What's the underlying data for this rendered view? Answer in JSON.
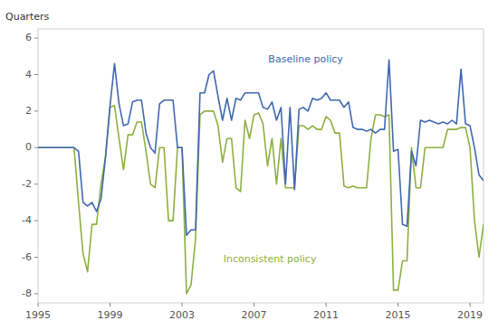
{
  "chart_data": {
    "type": "line",
    "ylabel": "Quarters",
    "xlim": [
      1995,
      2019.75
    ],
    "ylim": [
      -8.5,
      6.5
    ],
    "xticks": [
      1995,
      1999,
      2003,
      2007,
      2011,
      2015,
      2019
    ],
    "yticks": [
      -8,
      -6,
      -4,
      -2,
      0,
      2,
      4,
      6
    ],
    "grid": false,
    "x": [
      1995.0,
      1995.25,
      1995.5,
      1995.75,
      1996.0,
      1996.25,
      1996.5,
      1996.75,
      1997.0,
      1997.25,
      1997.5,
      1997.75,
      1998.0,
      1998.25,
      1998.5,
      1998.75,
      1999.0,
      1999.25,
      1999.5,
      1999.75,
      2000.0,
      2000.25,
      2000.5,
      2000.75,
      2001.0,
      2001.25,
      2001.5,
      2001.75,
      2002.0,
      2002.25,
      2002.5,
      2002.75,
      2003.0,
      2003.25,
      2003.5,
      2003.75,
      2004.0,
      2004.25,
      2004.5,
      2004.75,
      2005.0,
      2005.25,
      2005.5,
      2005.75,
      2006.0,
      2006.25,
      2006.5,
      2006.75,
      2007.0,
      2007.25,
      2007.5,
      2007.75,
      2008.0,
      2008.25,
      2008.5,
      2008.75,
      2009.0,
      2009.25,
      2009.5,
      2009.75,
      2010.0,
      2010.25,
      2010.5,
      2010.75,
      2011.0,
      2011.25,
      2011.5,
      2011.75,
      2012.0,
      2012.25,
      2012.5,
      2012.75,
      2013.0,
      2013.25,
      2013.5,
      2013.75,
      2014.0,
      2014.25,
      2014.5,
      2014.75,
      2015.0,
      2015.25,
      2015.5,
      2015.75,
      2016.0,
      2016.25,
      2016.5,
      2016.75,
      2017.0,
      2017.25,
      2017.5,
      2017.75,
      2018.0,
      2018.25,
      2018.5,
      2018.75,
      2019.0,
      2019.25,
      2019.5,
      2019.75
    ],
    "series": [
      {
        "name": "Baseline policy",
        "color": "#4068B0",
        "values": [
          0.0,
          0.0,
          0.0,
          0.0,
          0.0,
          0.0,
          0.0,
          0.0,
          0.0,
          -0.2,
          -3.0,
          -3.2,
          -3.0,
          -3.5,
          -2.8,
          -0.5,
          2.3,
          4.6,
          2.4,
          1.2,
          1.3,
          2.5,
          2.6,
          2.6,
          0.8,
          0.0,
          -0.3,
          2.4,
          2.6,
          2.6,
          2.6,
          0.0,
          0.0,
          -4.8,
          -4.5,
          -4.5,
          3.0,
          3.0,
          4.0,
          4.2,
          2.8,
          1.5,
          2.7,
          1.5,
          2.7,
          2.6,
          3.0,
          3.0,
          3.0,
          3.0,
          2.2,
          2.1,
          2.5,
          1.5,
          2.2,
          -2.0,
          2.2,
          -2.3,
          2.1,
          2.2,
          2.0,
          2.7,
          2.6,
          2.7,
          3.0,
          2.6,
          2.6,
          2.6,
          2.2,
          2.5,
          1.1,
          1.0,
          1.0,
          0.9,
          1.0,
          0.8,
          1.0,
          1.0,
          4.8,
          -0.2,
          -0.1,
          -4.2,
          -4.3,
          -0.2,
          -1.0,
          1.5,
          1.4,
          1.5,
          1.4,
          1.3,
          1.4,
          1.3,
          1.5,
          1.3,
          4.3,
          1.3,
          1.2,
          0.0,
          -1.5,
          -1.8
        ]
      },
      {
        "name": "Inconsistent policy",
        "color": "#8DB040",
        "values": [
          0.0,
          0.0,
          0.0,
          0.0,
          0.0,
          0.0,
          0.0,
          0.0,
          0.0,
          -3.0,
          -5.8,
          -6.8,
          -4.2,
          -4.2,
          -2.0,
          -0.5,
          2.2,
          2.3,
          0.5,
          -1.2,
          0.7,
          0.7,
          1.4,
          1.4,
          -0.2,
          -2.0,
          -2.2,
          0.0,
          0.0,
          -4.0,
          -4.0,
          0.0,
          0.0,
          -8.0,
          -7.5,
          -5.0,
          1.8,
          2.0,
          2.0,
          2.0,
          1.2,
          -0.8,
          0.5,
          0.5,
          -2.2,
          -2.4,
          1.5,
          0.5,
          1.8,
          1.9,
          1.3,
          -1.0,
          0.5,
          -2.0,
          0.5,
          -2.2,
          -2.2,
          -2.2,
          1.2,
          1.2,
          1.0,
          1.2,
          1.0,
          1.0,
          1.7,
          1.5,
          0.8,
          0.8,
          -2.1,
          -2.2,
          -2.1,
          -2.2,
          -2.2,
          -2.2,
          0.5,
          1.8,
          1.8,
          1.7,
          1.8,
          -7.8,
          -7.8,
          -6.2,
          -6.2,
          0.0,
          -2.2,
          -2.2,
          0.0,
          0.0,
          0.0,
          0.0,
          0.0,
          1.0,
          1.0,
          1.0,
          1.1,
          1.1,
          0.0,
          -4.0,
          -6.0,
          -4.2
        ]
      }
    ]
  }
}
